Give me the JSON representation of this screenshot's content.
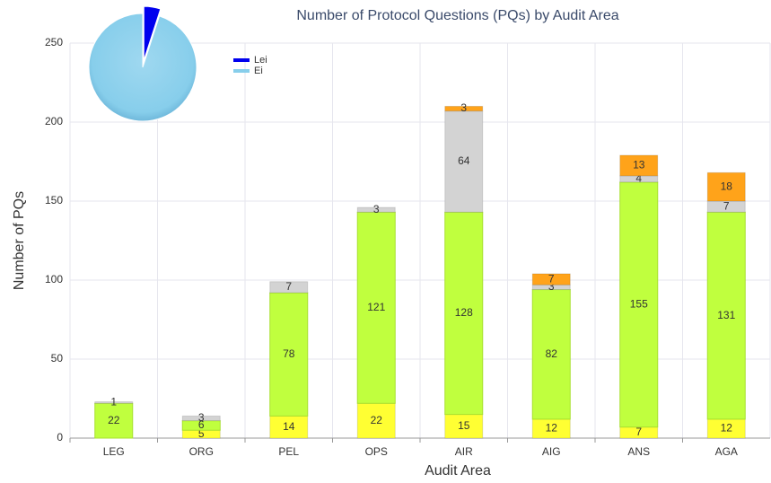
{
  "chart_data": [
    {
      "type": "bar",
      "stacked": true,
      "title": "Number of Protocol Questions (PQs) by Audit Area",
      "x_label": "Audit Area",
      "y_label": "Number of PQs",
      "categories": [
        "LEG",
        "ORG",
        "PEL",
        "OPS",
        "AIR",
        "AIG",
        "ANS",
        "AGA"
      ],
      "series": [
        {
          "color": "#ffff33",
          "values": [
            0,
            5,
            14,
            22,
            15,
            12,
            7,
            12
          ]
        },
        {
          "color": "#c0ff3e",
          "values": [
            22,
            6,
            78,
            121,
            128,
            82,
            155,
            131
          ]
        },
        {
          "color": "#d3d3d3",
          "values": [
            1,
            3,
            7,
            3,
            64,
            3,
            4,
            7
          ]
        },
        {
          "color": "#ffa31a",
          "values": [
            0,
            0,
            0,
            0,
            3,
            7,
            13,
            18
          ]
        }
      ],
      "ylim": [
        0,
        250
      ],
      "yticks": [
        0,
        50,
        100,
        150,
        200,
        250
      ],
      "grid": true
    },
    {
      "type": "pie",
      "labels": [
        "Lei",
        "Ei"
      ],
      "values": [
        5,
        95
      ],
      "colors": [
        "#0000ee",
        "#87ceeb"
      ],
      "legend": "top-left"
    }
  ]
}
